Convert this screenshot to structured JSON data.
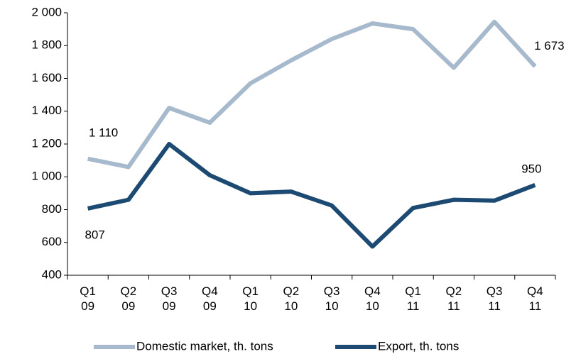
{
  "chart_data": {
    "type": "line",
    "categories": [
      "Q1 09",
      "Q2 09",
      "Q3 09",
      "Q4 09",
      "Q1 10",
      "Q2 10",
      "Q3 10",
      "Q4 10",
      "Q1 11",
      "Q2 11",
      "Q3 11",
      "Q4 11"
    ],
    "series": [
      {
        "name": "Domestic market, th. tons",
        "color": "#a7b9cd",
        "values": [
          1110,
          1060,
          1420,
          1330,
          1570,
          1710,
          1840,
          1935,
          1900,
          1665,
          1945,
          1673
        ],
        "value_labels": [
          "1 110",
          null,
          null,
          null,
          null,
          null,
          null,
          null,
          null,
          null,
          null,
          "1 673"
        ]
      },
      {
        "name": "Export, th. tons",
        "color": "#1d4a73",
        "values": [
          807,
          860,
          1200,
          1010,
          900,
          910,
          825,
          575,
          810,
          860,
          855,
          950
        ],
        "value_labels": [
          "807",
          null,
          null,
          null,
          null,
          null,
          null,
          null,
          null,
          null,
          null,
          "950"
        ]
      }
    ],
    "ylim": [
      400,
      2000
    ],
    "yticks": [
      400,
      600,
      800,
      {
        "value": 1000,
        "label": "1 000"
      },
      {
        "value": 1200,
        "label": "1 200"
      },
      {
        "value": 1400,
        "label": "1 400"
      },
      {
        "value": 1600,
        "label": "1 600"
      },
      {
        "value": 1800,
        "label": "1 800"
      },
      {
        "value": 2000,
        "label": "2 000"
      }
    ],
    "legend": "bottom"
  }
}
